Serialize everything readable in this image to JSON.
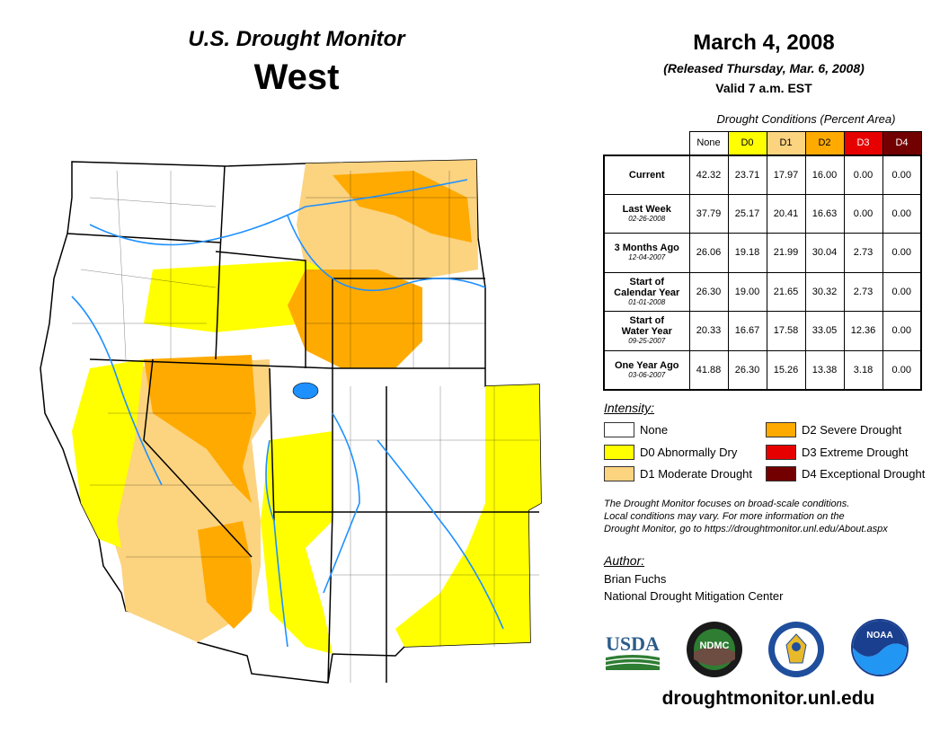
{
  "header": {
    "title_line1": "U.S. Drought Monitor",
    "title_line2": "West",
    "date": "March 4, 2008",
    "released": "(Released Thursday, Mar. 6, 2008)",
    "valid": "Valid 7 a.m. EST"
  },
  "table": {
    "caption": "Drought Conditions (Percent Area)",
    "columns": [
      "None",
      "D0",
      "D1",
      "D2",
      "D3",
      "D4"
    ],
    "rows": [
      {
        "label": "Current",
        "label2": "",
        "date": "",
        "values": [
          "42.32",
          "23.71",
          "17.97",
          "16.00",
          "0.00",
          "0.00"
        ]
      },
      {
        "label": "Last Week",
        "label2": "",
        "date": "02-26-2008",
        "values": [
          "37.79",
          "25.17",
          "20.41",
          "16.63",
          "0.00",
          "0.00"
        ]
      },
      {
        "label": "3 Months Ago",
        "label2": "",
        "date": "12-04-2007",
        "values": [
          "26.06",
          "19.18",
          "21.99",
          "30.04",
          "2.73",
          "0.00"
        ]
      },
      {
        "label": "Start of",
        "label2": "Calendar Year",
        "date": "01-01-2008",
        "values": [
          "26.30",
          "19.00",
          "21.65",
          "30.32",
          "2.73",
          "0.00"
        ]
      },
      {
        "label": "Start of",
        "label2": "Water Year",
        "date": "09-25-2007",
        "values": [
          "20.33",
          "16.67",
          "17.58",
          "33.05",
          "12.36",
          "0.00"
        ]
      },
      {
        "label": "One Year Ago",
        "label2": "",
        "date": "03-06-2007",
        "values": [
          "41.88",
          "26.30",
          "15.26",
          "13.38",
          "3.18",
          "0.00"
        ]
      }
    ]
  },
  "legend": {
    "title": "Intensity:",
    "items": [
      {
        "label": "None",
        "color": "#ffffff"
      },
      {
        "label": "D0 Abnormally Dry",
        "color": "#ffff00"
      },
      {
        "label": "D1 Moderate Drought",
        "color": "#fcd37f"
      },
      {
        "label": "D2 Severe Drought",
        "color": "#ffaa00"
      },
      {
        "label": "D3 Extreme Drought",
        "color": "#e60000"
      },
      {
        "label": "D4 Exceptional Drought",
        "color": "#730000"
      }
    ]
  },
  "note": {
    "line1": "The Drought Monitor focuses on broad-scale conditions.",
    "line2": "Local conditions may vary. For more information on the",
    "line3": "Drought Monitor, go to https://droughtmonitor.unl.edu/About.aspx"
  },
  "author": {
    "title": "Author:",
    "name": "Brian Fuchs",
    "org": "National Drought Mitigation Center"
  },
  "logos": {
    "usda": "USDA",
    "ndmc": "NDMC",
    "noaa": "NOAA"
  },
  "footer_url": "droughtmonitor.unl.edu",
  "colors": {
    "none": "#ffffff",
    "d0": "#ffff00",
    "d1": "#fcd37f",
    "d2": "#ffaa00",
    "d3": "#e60000",
    "d4": "#730000",
    "water": "#1e90ff"
  }
}
